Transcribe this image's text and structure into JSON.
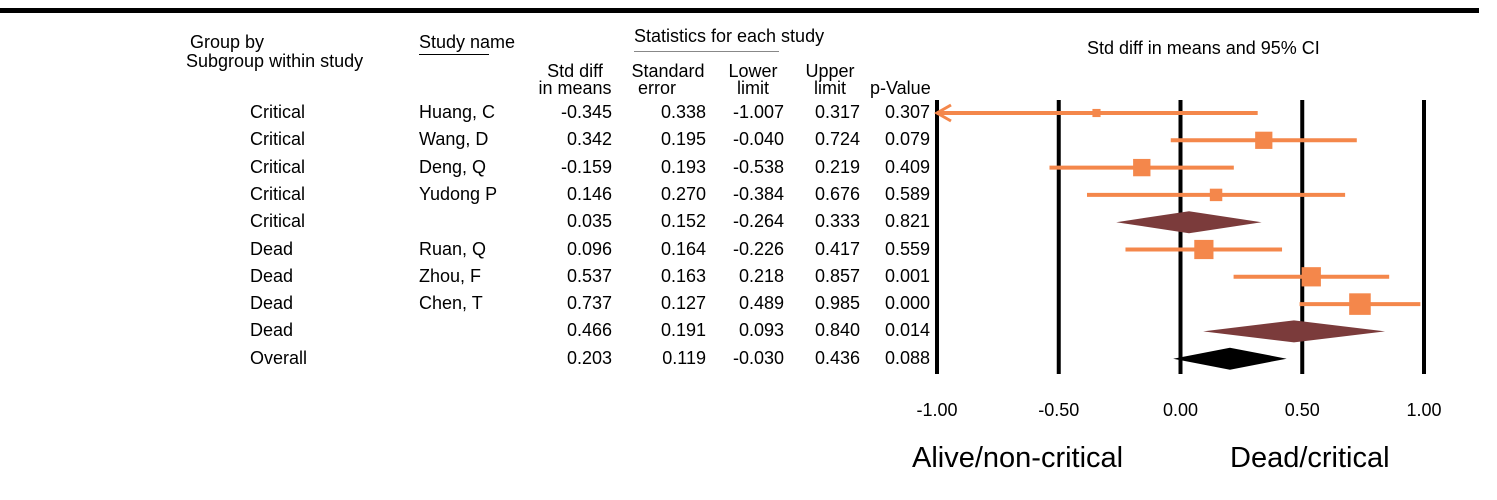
{
  "headers": {
    "group_by": "Group by",
    "subgroup": "Subgroup within study",
    "study_name": "Study name",
    "stats": "Statistics for each study",
    "ci": "Std diff in means and 95% CI",
    "col_sdm_1": "Std diff",
    "col_sdm_2": "in means",
    "col_se_1": "Standard",
    "col_se_2": "error",
    "col_ll_1": "Lower",
    "col_ll_2": "limit",
    "col_ul_1": "Upper",
    "col_ul_2": "limit",
    "col_p": "p-Value"
  },
  "rows": [
    {
      "group": "Critical",
      "study": "Huang, C",
      "sdm": "-0.345",
      "se": "0.338",
      "ll": "-1.007",
      "ul": "0.317",
      "p": "0.307"
    },
    {
      "group": "Critical",
      "study": "Wang, D",
      "sdm": "0.342",
      "se": "0.195",
      "ll": "-0.040",
      "ul": "0.724",
      "p": "0.079"
    },
    {
      "group": "Critical",
      "study": "Deng, Q",
      "sdm": "-0.159",
      "se": "0.193",
      "ll": "-0.538",
      "ul": "0.219",
      "p": "0.409"
    },
    {
      "group": "Critical",
      "study": "Yudong P",
      "sdm": "0.146",
      "se": "0.270",
      "ll": "-0.384",
      "ul": "0.676",
      "p": "0.589"
    },
    {
      "group": "Critical",
      "study": "",
      "sdm": "0.035",
      "se": "0.152",
      "ll": "-0.264",
      "ul": "0.333",
      "p": "0.821"
    },
    {
      "group": "Dead",
      "study": "Ruan, Q",
      "sdm": "0.096",
      "se": "0.164",
      "ll": "-0.226",
      "ul": "0.417",
      "p": "0.559"
    },
    {
      "group": "Dead",
      "study": "Zhou, F",
      "sdm": "0.537",
      "se": "0.163",
      "ll": "0.218",
      "ul": "0.857",
      "p": "0.001"
    },
    {
      "group": "Dead",
      "study": "Chen, T",
      "sdm": "0.737",
      "se": "0.127",
      "ll": "0.489",
      "ul": "0.985",
      "p": "0.000"
    },
    {
      "group": "Dead",
      "study": "",
      "sdm": "0.466",
      "se": "0.191",
      "ll": "0.093",
      "ul": "0.840",
      "p": "0.014"
    },
    {
      "group": "Overall",
      "study": "",
      "sdm": "0.203",
      "se": "0.119",
      "ll": "-0.030",
      "ul": "0.436",
      "p": "0.088"
    }
  ],
  "chart_data": {
    "type": "forest",
    "title": "Std diff in means and 95% CI",
    "xlim": [
      -1.0,
      1.0
    ],
    "xticks": [
      "-1.00",
      "-0.50",
      "0.00",
      "0.50",
      "1.00"
    ],
    "tick_values": [
      -1.0,
      -0.5,
      0.0,
      0.5,
      1.0
    ],
    "left_label": "Alive/non-critical",
    "right_label": "Dead/critical",
    "study_color": "#f4874b",
    "subgroup_color": "#7b3b3b",
    "overall_color": "#000000",
    "points": [
      {
        "label": "Huang, C",
        "kind": "study",
        "est": -0.345,
        "lo": -1.007,
        "hi": 0.317,
        "weight": 0.338
      },
      {
        "label": "Wang, D",
        "kind": "study",
        "est": 0.342,
        "lo": -0.04,
        "hi": 0.724,
        "weight": 0.195
      },
      {
        "label": "Deng, Q",
        "kind": "study",
        "est": -0.159,
        "lo": -0.538,
        "hi": 0.219,
        "weight": 0.193
      },
      {
        "label": "Yudong P",
        "kind": "study",
        "est": 0.146,
        "lo": -0.384,
        "hi": 0.676,
        "weight": 0.27
      },
      {
        "label": "Critical",
        "kind": "subgroup",
        "est": 0.035,
        "lo": -0.264,
        "hi": 0.333
      },
      {
        "label": "Ruan, Q",
        "kind": "study",
        "est": 0.096,
        "lo": -0.226,
        "hi": 0.417,
        "weight": 0.164
      },
      {
        "label": "Zhou, F",
        "kind": "study",
        "est": 0.537,
        "lo": 0.218,
        "hi": 0.857,
        "weight": 0.163
      },
      {
        "label": "Chen, T",
        "kind": "study",
        "est": 0.737,
        "lo": 0.489,
        "hi": 0.985,
        "weight": 0.127
      },
      {
        "label": "Dead",
        "kind": "subgroup",
        "est": 0.466,
        "lo": 0.093,
        "hi": 0.84
      },
      {
        "label": "Overall",
        "kind": "overall",
        "est": 0.203,
        "lo": -0.03,
        "hi": 0.436
      }
    ]
  }
}
